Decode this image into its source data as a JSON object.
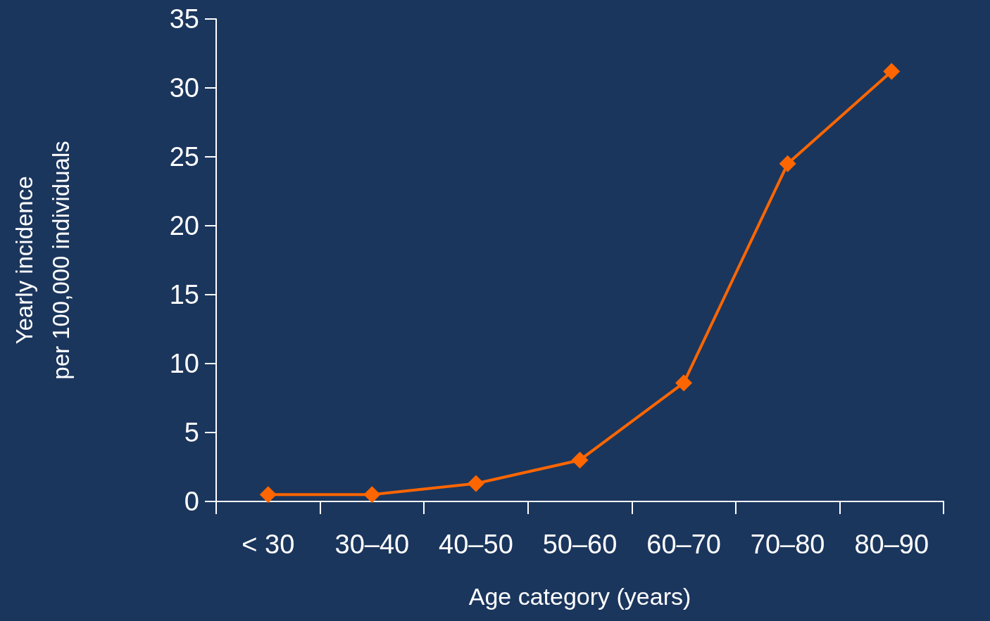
{
  "chart_data": {
    "type": "line",
    "xlabel": "Age category (years)",
    "ylabel": "Yearly incidence\nper 100,000 individuals",
    "categories": [
      "< 30",
      "30–40",
      "40–50",
      "50–60",
      "60–70",
      "70–80",
      "80–90"
    ],
    "series": [
      {
        "color": "#ff6600",
        "values": [
          0.5,
          0.5,
          1.3,
          3.0,
          8.6,
          24.5,
          31.2
        ]
      }
    ],
    "ylim": [
      0,
      35
    ],
    "yticks": [
      0,
      5,
      10,
      15,
      20,
      25,
      30,
      35
    ],
    "grid": false,
    "marker": "diamond",
    "line_style": "solid"
  }
}
